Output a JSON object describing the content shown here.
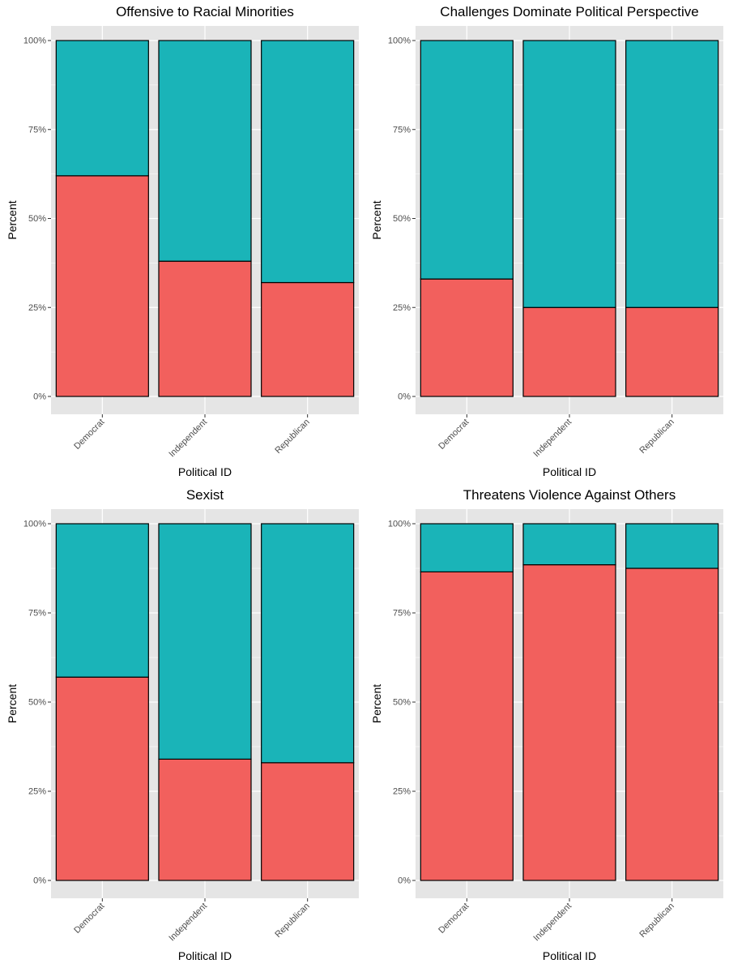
{
  "colors": {
    "panel_bg": "#e5e5e5",
    "grid": "#ffffff",
    "segment_bottom": "#f2605d",
    "segment_top": "#1ab4b8",
    "bar_outline": "#000000",
    "text": "#000000",
    "tick_text": "#4d4d4d"
  },
  "chart_data": [
    {
      "type": "bar",
      "stacked": true,
      "title": "Offensive to Racial Minorities",
      "xlabel": "Political ID",
      "ylabel": "Percent",
      "categories": [
        "Democrat",
        "Independent",
        "Republican"
      ],
      "ylim": [
        0,
        1
      ],
      "yticks": [
        "0%",
        "25%",
        "50%",
        "75%",
        "100%"
      ],
      "grid": true,
      "series": [
        {
          "values": [
            0.62,
            0.38,
            0.32
          ]
        },
        {
          "values": [
            0.38,
            0.62,
            0.68
          ]
        }
      ]
    },
    {
      "type": "bar",
      "stacked": true,
      "title": "Challenges Dominate Political Perspective",
      "xlabel": "Political ID",
      "ylabel": "Percent",
      "categories": [
        "Democrat",
        "Independent",
        "Republican"
      ],
      "ylim": [
        0,
        1
      ],
      "yticks": [
        "0%",
        "25%",
        "50%",
        "75%",
        "100%"
      ],
      "grid": true,
      "series": [
        {
          "values": [
            0.33,
            0.25,
            0.25
          ]
        },
        {
          "values": [
            0.67,
            0.75,
            0.75
          ]
        }
      ]
    },
    {
      "type": "bar",
      "stacked": true,
      "title": "Sexist",
      "xlabel": "Political ID",
      "ylabel": "Percent",
      "categories": [
        "Democrat",
        "Independent",
        "Republican"
      ],
      "ylim": [
        0,
        1
      ],
      "yticks": [
        "0%",
        "25%",
        "50%",
        "75%",
        "100%"
      ],
      "grid": true,
      "series": [
        {
          "values": [
            0.57,
            0.34,
            0.33
          ]
        },
        {
          "values": [
            0.43,
            0.66,
            0.67
          ]
        }
      ]
    },
    {
      "type": "bar",
      "stacked": true,
      "title": "Threatens Violence Against Others",
      "xlabel": "Political ID",
      "ylabel": "Percent",
      "categories": [
        "Democrat",
        "Independent",
        "Republican"
      ],
      "ylim": [
        0,
        1
      ],
      "yticks": [
        "0%",
        "25%",
        "50%",
        "75%",
        "100%"
      ],
      "grid": true,
      "series": [
        {
          "values": [
            0.865,
            0.885,
            0.875
          ]
        },
        {
          "values": [
            0.135,
            0.115,
            0.125
          ]
        }
      ]
    }
  ]
}
